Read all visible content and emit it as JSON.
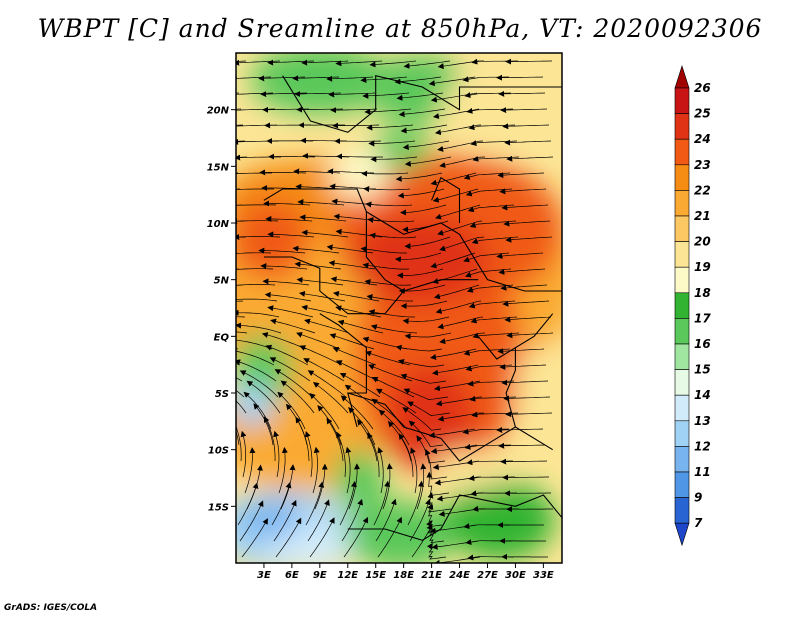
{
  "title": "WBPT [C] and Sreamline at 850hPa, VT: 2020092306",
  "credit": "GrADS: IGES/COLA",
  "map": {
    "lon_range": [
      0,
      35
    ],
    "lat_range": [
      -20,
      25
    ],
    "lon_ticks": [
      "3E",
      "6E",
      "9E",
      "12E",
      "15E",
      "18E",
      "21E",
      "24E",
      "27E",
      "30E",
      "33E"
    ],
    "lon_tick_values": [
      3,
      6,
      9,
      12,
      15,
      18,
      21,
      24,
      27,
      30,
      33
    ],
    "lat_ticks": [
      "20N",
      "15N",
      "10N",
      "5N",
      "EQ",
      "5S",
      "10S",
      "15S"
    ],
    "lat_tick_values": [
      20,
      15,
      10,
      5,
      0,
      -5,
      -10,
      -15
    ]
  },
  "colorbar": {
    "levels": [
      "26",
      "25",
      "24",
      "23",
      "22",
      "21",
      "20",
      "19",
      "18",
      "17",
      "16",
      "15",
      "14",
      "13",
      "12",
      "11",
      "9",
      "7"
    ],
    "colors": [
      "#a00000",
      "#c81414",
      "#e03214",
      "#f05a14",
      "#f58c14",
      "#faaa32",
      "#fcc864",
      "#fce696",
      "#fefac8",
      "#32b432",
      "#5ac85a",
      "#a0e6a0",
      "#e6fae6",
      "#d2ebfa",
      "#a0d2f5",
      "#78b4f0",
      "#5096e6",
      "#2864d2",
      "#1e46c8"
    ]
  },
  "chart_data": {
    "type": "heatmap",
    "variable": "WBPT [C]",
    "level": "850hPa",
    "valid_time": "2020092306",
    "x_range_deg": [
      0,
      35
    ],
    "y_range_deg": [
      -20,
      25
    ],
    "regions": [
      {
        "lon": 20,
        "lat": 8,
        "value": 23.5
      },
      {
        "lon": 26,
        "lat": 11,
        "value": 23
      },
      {
        "lon": 22,
        "lat": -3,
        "value": 23
      },
      {
        "lon": 19,
        "lat": -10,
        "value": 23
      },
      {
        "lon": 10,
        "lat": 5,
        "value": 21
      },
      {
        "lon": 4,
        "lat": 8,
        "value": 21.5
      },
      {
        "lon": 6,
        "lat": 14,
        "value": 20
      },
      {
        "lon": 15,
        "lat": 21,
        "value": 18.5
      },
      {
        "lon": 7,
        "lat": 22,
        "value": 17.5
      },
      {
        "lon": 3,
        "lat": -5,
        "value": 16
      },
      {
        "lon": 2,
        "lat": -6,
        "value": 13.5
      },
      {
        "lon": 5,
        "lat": -16,
        "value": 13
      },
      {
        "lon": 29,
        "lat": -15,
        "value": 17
      },
      {
        "lon": 15,
        "lat": -15,
        "value": 17
      },
      {
        "lon": 31,
        "lat": -7,
        "value": 19
      }
    ]
  }
}
